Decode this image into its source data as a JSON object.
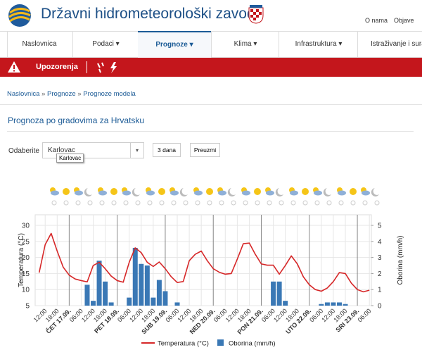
{
  "header": {
    "title": "Državni hidrometeorološki zavod",
    "links": [
      "O nama",
      "Objave"
    ]
  },
  "nav": {
    "items": [
      "Naslovnica",
      "Podaci",
      "Prognoze",
      "Klima",
      "Infrastruktura",
      "Istraživanje i suradnja"
    ]
  },
  "alert": {
    "label": "Upozorenja"
  },
  "breadcrumb": {
    "items": [
      "Naslovnica",
      "Prognoze",
      "Prognoze modela"
    ],
    "separator": "»"
  },
  "heading": "Prognoza po gradovima za Hrvatsku",
  "form": {
    "label": "Odaberite",
    "select": "Karlovac",
    "tooltip": "Karlovac",
    "buttons": [
      "3 dana",
      "Preuzmi"
    ]
  },
  "chart_data": {
    "type": "combo",
    "ylabel": "Temperatura (°C)",
    "y2label": "Oborina (mm/h)",
    "x": [
      -15,
      -12,
      -9,
      -6,
      -3,
      0,
      3,
      6,
      9,
      12,
      15,
      18,
      21,
      24,
      27,
      30,
      33,
      36,
      39,
      42,
      45,
      48,
      51,
      54,
      57,
      60,
      63,
      66,
      69,
      72,
      75,
      78,
      81,
      84,
      87,
      90,
      93,
      96,
      99,
      102,
      105,
      108,
      111,
      114,
      117,
      120,
      123,
      126,
      129,
      132,
      135,
      138,
      141,
      144,
      147,
      150
    ],
    "series": [
      {
        "name": "Temperatura (°C)",
        "color": "#d62728",
        "values": [
          15.3,
          24,
          27.5,
          22,
          17,
          14.5,
          13.3,
          12.8,
          12.4,
          17.5,
          18.5,
          16.5,
          14.2,
          12.8,
          12.3,
          18.5,
          23,
          21.5,
          18.5,
          17.2,
          18.6,
          16.5,
          14,
          12.2,
          12.5,
          19,
          21,
          22,
          19,
          16.5,
          15.4,
          14.8,
          15,
          19.5,
          24.3,
          24.5,
          21,
          18,
          17.6,
          17.6,
          14.8,
          17.5,
          20.5,
          18,
          14,
          11.5,
          10,
          9.5,
          10.5,
          12.5,
          15.3,
          15,
          12,
          10,
          9.3,
          9.8
        ]
      },
      {
        "name": "Oborina (mm/h)",
        "color": "#3a78b5",
        "axis": "y2",
        "values": [
          0,
          0,
          0,
          0,
          0,
          0,
          0,
          0,
          1.3,
          0.3,
          2.8,
          1.5,
          0.2,
          0,
          0,
          0.5,
          3.6,
          2.6,
          2.5,
          0.5,
          1.6,
          0.9,
          0,
          0.2,
          0,
          0,
          0,
          0,
          0,
          0,
          0,
          0,
          0,
          0,
          0,
          0,
          0,
          0,
          0,
          1.5,
          1.5,
          0.3,
          0,
          0,
          0,
          0,
          0,
          0.1,
          0.2,
          0.2,
          0.2,
          0.1,
          0,
          0,
          0,
          0
        ]
      }
    ],
    "xlim": [
      -17,
      151
    ],
    "xticks": [
      {
        "value": -12,
        "label": "12:00"
      },
      {
        "value": -6,
        "label": "18:00"
      },
      {
        "value": 0,
        "label": "ČET 17.09."
      },
      {
        "value": 6,
        "label": "06:00"
      },
      {
        "value": 12,
        "label": "12:00"
      },
      {
        "value": 18,
        "label": "18:00"
      },
      {
        "value": 24,
        "label": "PET 18.09."
      },
      {
        "value": 30,
        "label": "06:00"
      },
      {
        "value": 36,
        "label": "12:00"
      },
      {
        "value": 42,
        "label": "18:00"
      },
      {
        "value": 48,
        "label": "SUB 19.09."
      },
      {
        "value": 54,
        "label": "06:00"
      },
      {
        "value": 60,
        "label": "12:00"
      },
      {
        "value": 66,
        "label": "18:00"
      },
      {
        "value": 72,
        "label": "NED 20.09."
      },
      {
        "value": 78,
        "label": "06:00"
      },
      {
        "value": 84,
        "label": "12:00"
      },
      {
        "value": 90,
        "label": "18:00"
      },
      {
        "value": 96,
        "label": "PON 21.09."
      },
      {
        "value": 102,
        "label": "06:00"
      },
      {
        "value": 108,
        "label": "12:00"
      },
      {
        "value": 114,
        "label": "18:00"
      },
      {
        "value": 120,
        "label": "UTO 22.09."
      },
      {
        "value": 126,
        "label": "06:00"
      },
      {
        "value": 132,
        "label": "12:00"
      },
      {
        "value": 138,
        "label": "18:00"
      },
      {
        "value": 144,
        "label": "SRI 23.09."
      },
      {
        "value": 150,
        "label": "06:00"
      }
    ],
    "ylim": [
      5,
      33.3
    ],
    "yticks": [
      5,
      10,
      15,
      20,
      25,
      30
    ],
    "y2lim": [
      0,
      5.66
    ],
    "y2ticks": [
      0,
      1,
      2,
      3,
      4,
      5
    ],
    "grid": true
  }
}
